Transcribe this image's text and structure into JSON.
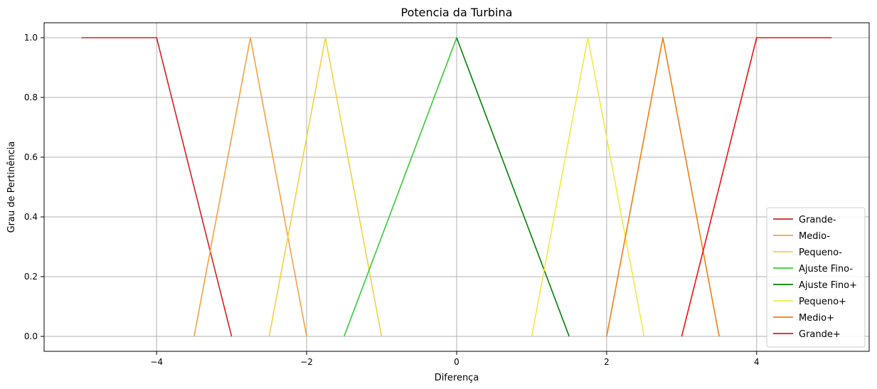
{
  "chart_data": {
    "type": "line",
    "title": "Potencia da Turbina",
    "xlabel": "Diferença",
    "ylabel": "Grau de Pertinência",
    "xlim": [
      -5.5,
      5.5
    ],
    "ylim": [
      -0.05,
      1.05
    ],
    "xticks": [
      -4,
      -2,
      0,
      2,
      4
    ],
    "xtick_labels": [
      "−4",
      "−2",
      "0",
      "2",
      "4"
    ],
    "yticks": [
      0.0,
      0.2,
      0.4,
      0.6,
      0.8,
      1.0
    ],
    "ytick_labels": [
      "0.0",
      "0.2",
      "0.4",
      "0.6",
      "0.8",
      "1.0"
    ],
    "grid": true,
    "legend_position": "lower-right",
    "series": [
      {
        "name": "Grande-",
        "color": "#d62020",
        "x": [
          -5,
          -4,
          -3
        ],
        "y": [
          1,
          1,
          0
        ]
      },
      {
        "name": "Medio-",
        "color": "#f5a040",
        "x": [
          -3.5,
          -2.75,
          -2
        ],
        "y": [
          0,
          1,
          0
        ]
      },
      {
        "name": "Pequeno-",
        "color": "#f5d040",
        "x": [
          -2.5,
          -1.75,
          -1
        ],
        "y": [
          0,
          1,
          0
        ]
      },
      {
        "name": "Ajuste Fino-",
        "color": "#33cc33",
        "x": [
          -1.5,
          0
        ],
        "y": [
          0,
          1
        ]
      },
      {
        "name": "Ajuste Fino+",
        "color": "#008000",
        "x": [
          0,
          1.5
        ],
        "y": [
          1,
          0
        ]
      },
      {
        "name": "Pequeno+",
        "color": "#f5e642",
        "x": [
          1,
          1.75,
          2.5
        ],
        "y": [
          0,
          1,
          0
        ]
      },
      {
        "name": "Medio+",
        "color": "#f57c10",
        "x": [
          2,
          2.75,
          3.5
        ],
        "y": [
          0,
          1,
          0
        ]
      },
      {
        "name": "Grande+",
        "color": "#ee1111",
        "x": [
          3,
          4,
          5
        ],
        "y": [
          0,
          1,
          1
        ]
      }
    ]
  }
}
